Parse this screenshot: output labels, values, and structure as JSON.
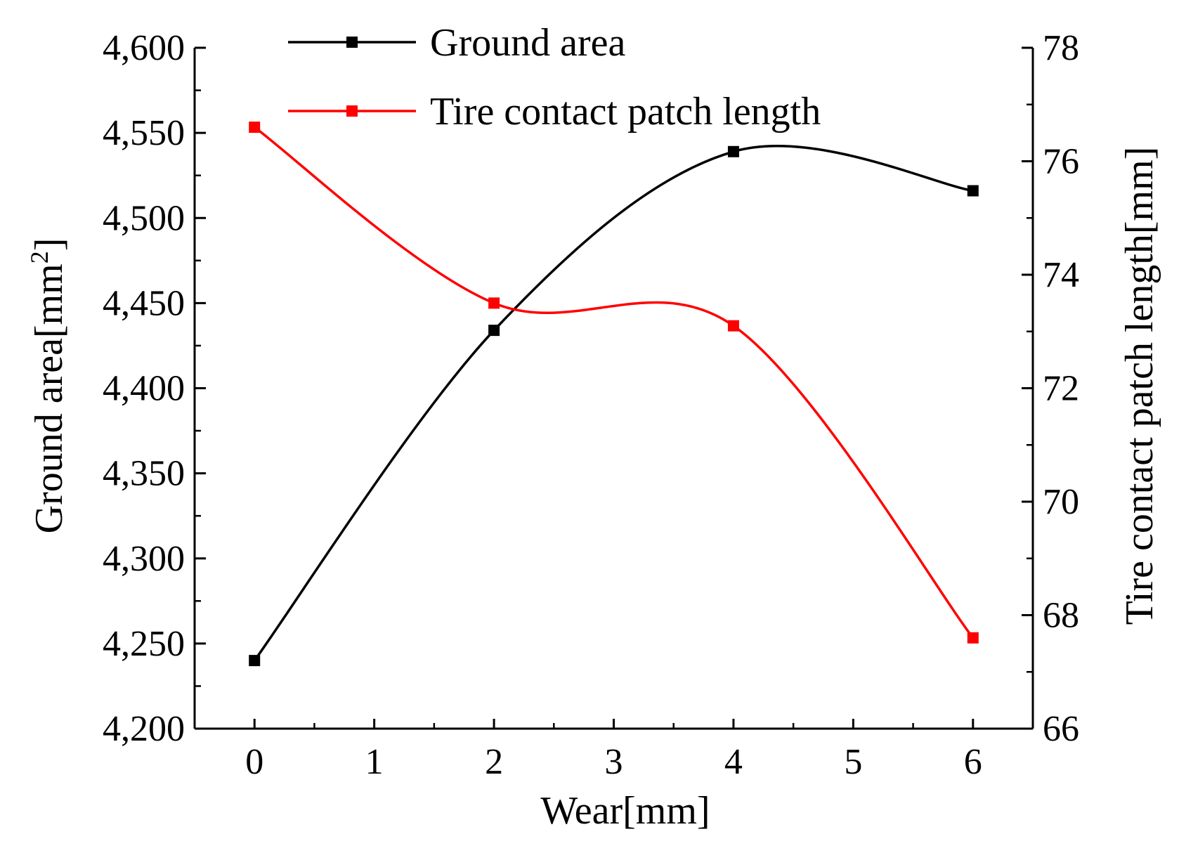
{
  "chart_data": {
    "type": "line",
    "x": [
      0,
      2,
      4,
      6
    ],
    "xlabel": "Wear[mm]",
    "xlim": [
      -0.5,
      6.5
    ],
    "xticks": [
      "0",
      "1",
      "2",
      "3",
      "4",
      "5",
      "6"
    ],
    "ylabel_left_prefix": "Ground area[mm",
    "ylabel_left_sup": "2",
    "ylabel_left_suffix": "]",
    "ylim_left": [
      4200,
      4600
    ],
    "yticks_left": [
      "4,200",
      "4,250",
      "4,300",
      "4,350",
      "4,400",
      "4,450",
      "4,500",
      "4,550",
      "4,600"
    ],
    "ylabel_right": "Tire contact patch length[mm]",
    "ylim_right": [
      66,
      78
    ],
    "yticks_right": [
      "66",
      "68",
      "70",
      "72",
      "74",
      "76",
      "78"
    ],
    "series": [
      {
        "name": "Ground area",
        "axis": "left",
        "color": "#000000",
        "values": [
          4240,
          4434,
          4539,
          4516
        ]
      },
      {
        "name": "Tire contact patch length",
        "axis": "right",
        "color": "#ff0000",
        "values": [
          76.6,
          73.5,
          73.1,
          67.6
        ]
      }
    ],
    "legend_position": "top-center",
    "grid": false,
    "smooth": true
  }
}
